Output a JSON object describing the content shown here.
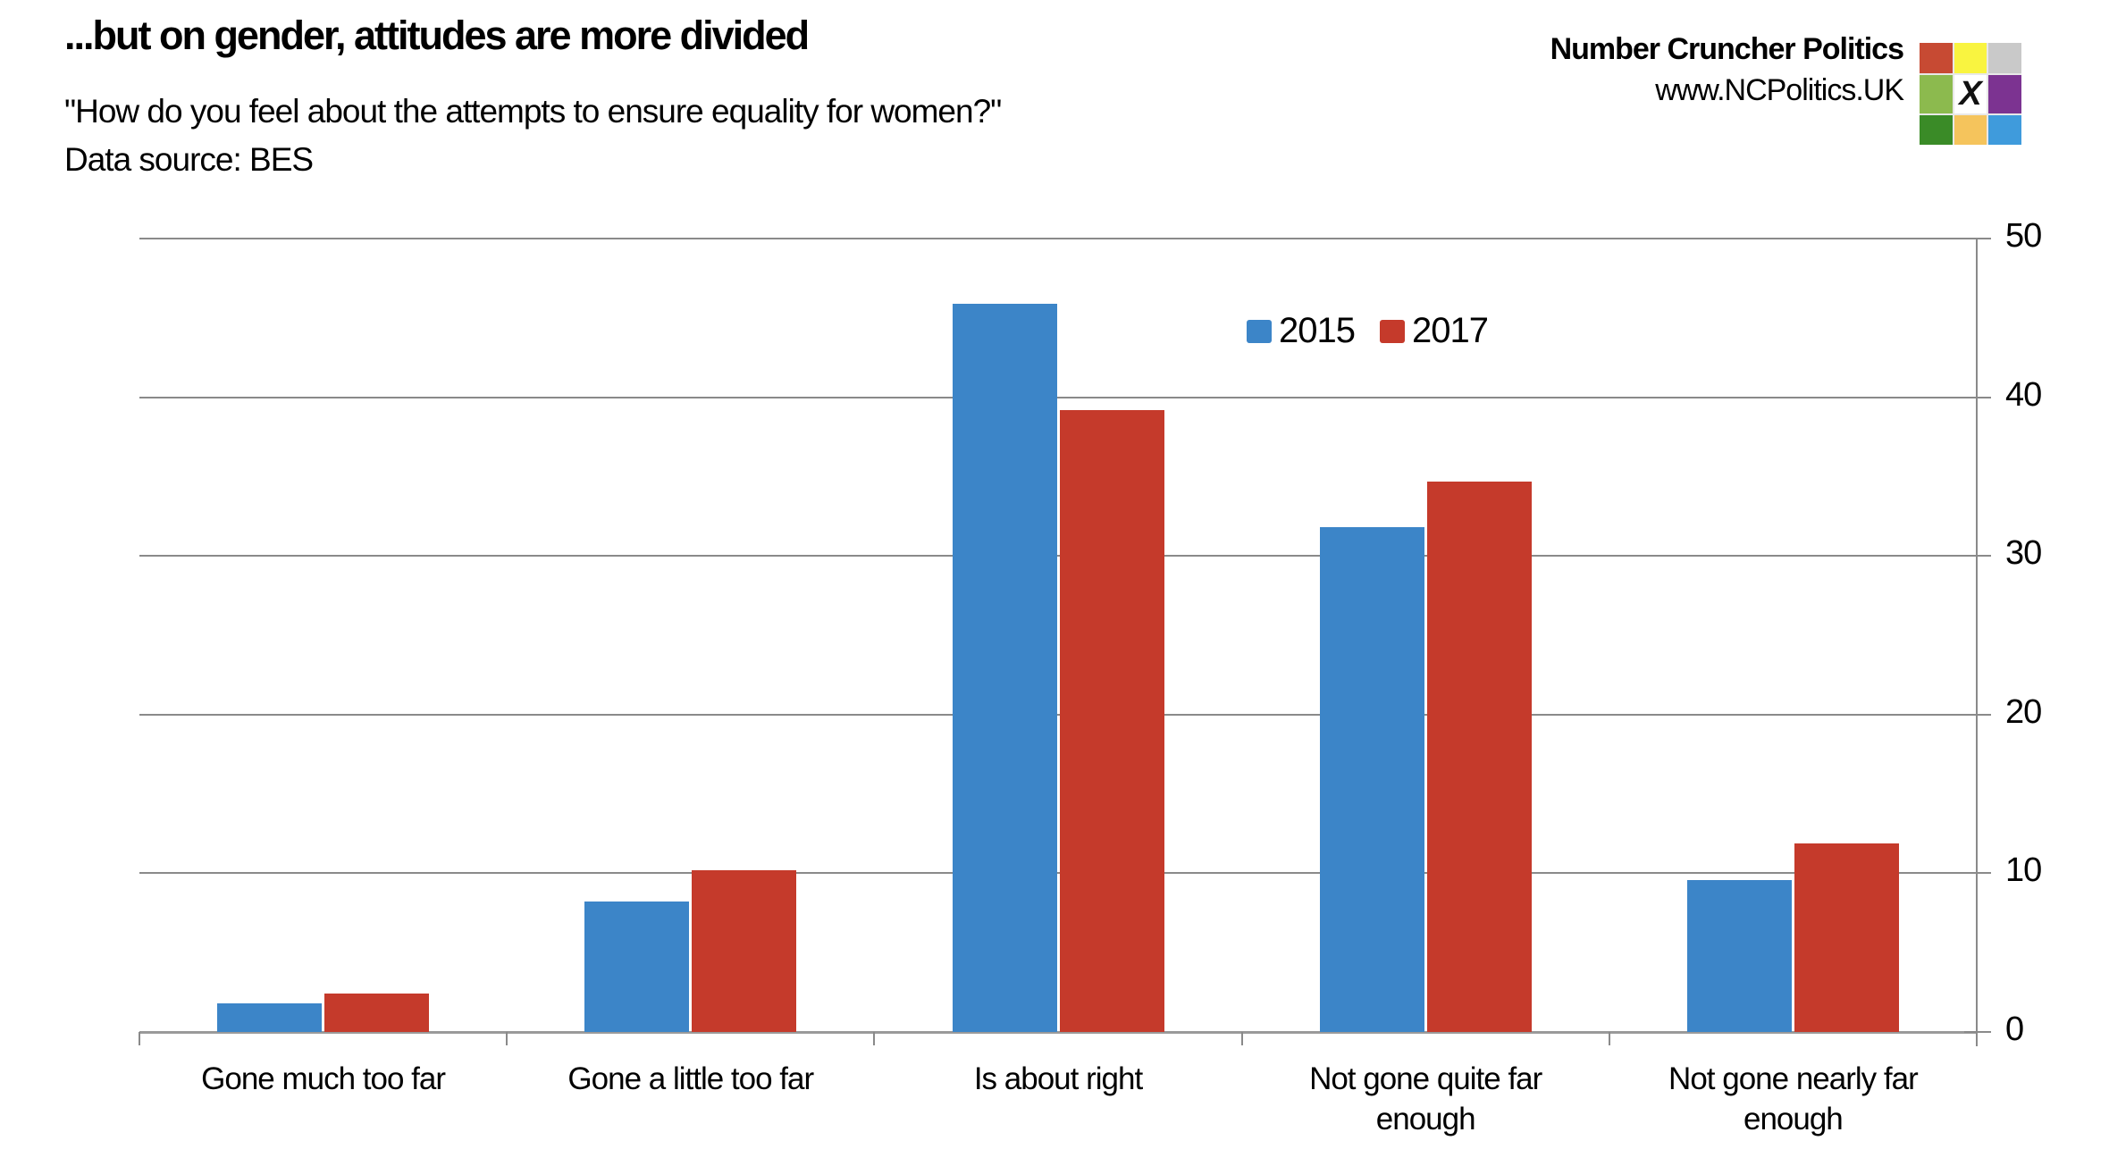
{
  "header": {
    "title": "...but on gender, attitudes are more divided",
    "subtitle": "\"How do you feel about the attempts to ensure equality for women?\"",
    "datasource": "Data source: BES",
    "brand_name": "Number Cruncher Politics",
    "brand_url": "www.NCPolitics.UK",
    "logo": {
      "x_glyph": "X",
      "colors": [
        [
          "#c74a33",
          "#f9f440",
          "#c9c9c9"
        ],
        [
          "#8cba4e",
          "#ffffff",
          "#7c3391"
        ],
        [
          "#3a8b27",
          "#f5c45c",
          "#3f9bdc"
        ]
      ]
    }
  },
  "chart_data": {
    "type": "bar",
    "title": "...but on gender, attitudes are more divided",
    "subtitle": "\"How do you feel about the attempts to ensure equality for women?\"",
    "source": "Data source: BES",
    "categories": [
      "Gone much too far",
      "Gone a little too far",
      "Is about right",
      "Not gone quite far enough",
      "Not gone nearly far enough"
    ],
    "tick_labels": [
      "Gone much too far",
      "Gone a little too far",
      "Is about right",
      "Not gone quite far\nenough",
      "Not gone nearly far\nenough"
    ],
    "series": [
      {
        "name": "2015",
        "color": "#3c85c8",
        "values": [
          1.8,
          8.2,
          45.9,
          31.8,
          9.6
        ]
      },
      {
        "name": "2017",
        "color": "#c53a2b",
        "values": [
          2.4,
          10.2,
          39.2,
          34.7,
          11.9
        ]
      }
    ],
    "xlabel": "",
    "ylabel": "",
    "ylim": [
      0,
      50
    ],
    "yticks": [
      0,
      10,
      20,
      30,
      40,
      50
    ],
    "grid": true,
    "legend_position": "top-center",
    "grid_color": "#8a8a8a",
    "axis_color": "#9a9a9a",
    "text_color": "#000000"
  }
}
